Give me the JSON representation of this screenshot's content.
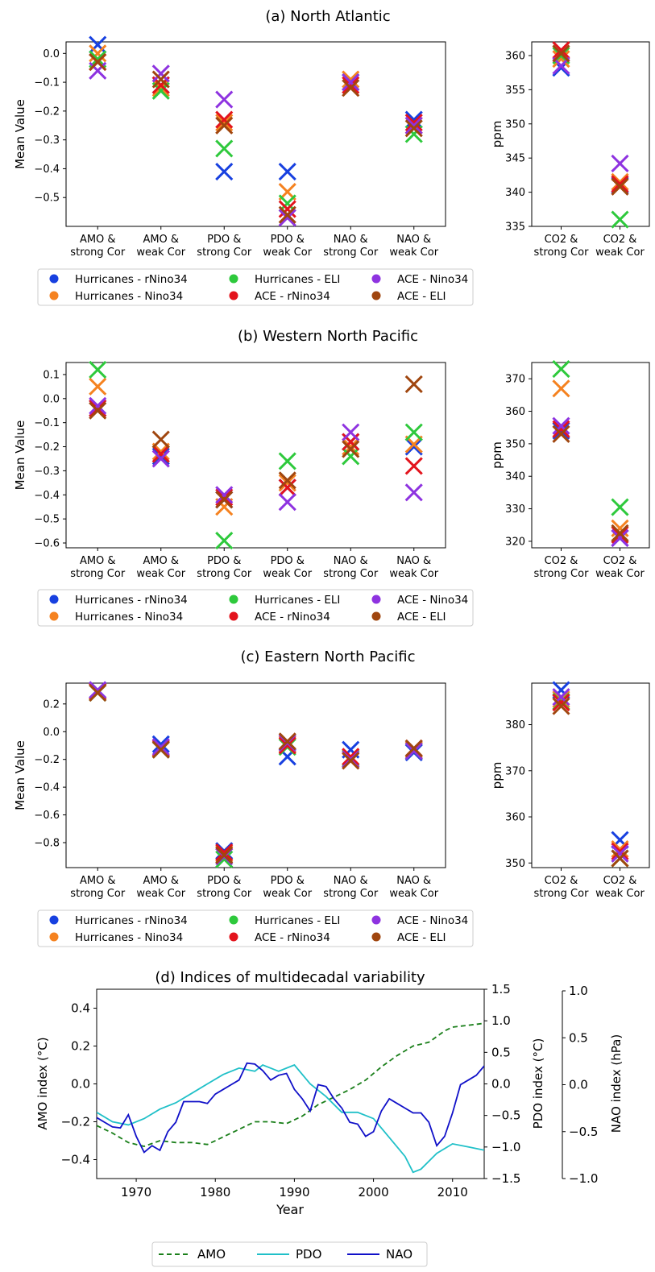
{
  "legend_top": {
    "items": [
      {
        "label": "Hurricanes - rNino34",
        "color": "#1740e0"
      },
      {
        "label": "Hurricanes - Nino34",
        "color": "#f58220"
      },
      {
        "label": "Hurricanes - ELI",
        "color": "#2ec93c"
      },
      {
        "label": "ACE - rNino34",
        "color": "#e3141d"
      },
      {
        "label": "ACE - Nino34",
        "color": "#8e33e0"
      },
      {
        "label": "ACE - ELI",
        "color": "#a0460f"
      }
    ]
  },
  "chart_data": [
    {
      "type": "scatter",
      "panel": "a",
      "title": "(a) North Atlantic",
      "ylabel": "Mean Value",
      "ylim": [
        -0.6,
        0.04
      ],
      "yticks": [
        0.0,
        -0.1,
        -0.2,
        -0.3,
        -0.4,
        -0.5
      ],
      "ytick_labels": [
        "0.0",
        "−0.1",
        "−0.2",
        "−0.3",
        "−0.4",
        "−0.5"
      ],
      "categories": [
        "AMO &|strong Cor",
        "AMO &|weak Cor",
        "PDO &|strong Cor",
        "PDO &|weak Cor",
        "NAO &|strong Cor",
        "NAO &|weak Cor"
      ],
      "series": [
        {
          "name": "Hurricanes - rNino34",
          "values": [
            0.03,
            -0.11,
            -0.41,
            -0.41,
            -0.1,
            -0.23
          ]
        },
        {
          "name": "Hurricanes - Nino34",
          "values": [
            0.0,
            -0.12,
            -0.24,
            -0.48,
            -0.09,
            -0.25
          ]
        },
        {
          "name": "Hurricanes - ELI",
          "values": [
            -0.02,
            -0.13,
            -0.33,
            -0.52,
            -0.1,
            -0.28
          ]
        },
        {
          "name": "ACE - rNino34",
          "values": [
            -0.03,
            -0.11,
            -0.23,
            -0.54,
            -0.11,
            -0.24
          ]
        },
        {
          "name": "ACE - Nino34",
          "values": [
            -0.06,
            -0.07,
            -0.16,
            -0.57,
            -0.1,
            -0.25
          ]
        },
        {
          "name": "ACE - ELI",
          "values": [
            -0.03,
            -0.09,
            -0.25,
            -0.56,
            -0.12,
            -0.26
          ]
        }
      ],
      "side": {
        "ylabel": "ppm",
        "ylim": [
          335,
          362
        ],
        "yticks": [
          360,
          355,
          350,
          345,
          340,
          335
        ],
        "categories": [
          "CO2 &|strong Cor",
          "CO2 &|weak Cor"
        ],
        "series": [
          {
            "name": "Hurricanes - rNino34",
            "values": [
              358.2,
              341.0
            ]
          },
          {
            "name": "Hurricanes - Nino34",
            "values": [
              359.5,
              341.5
            ]
          },
          {
            "name": "Hurricanes - ELI",
            "values": [
              360.0,
              336.0
            ]
          },
          {
            "name": "ACE - rNino34",
            "values": [
              360.8,
              341.2
            ]
          },
          {
            "name": "ACE - Nino34",
            "values": [
              358.5,
              344.2
            ]
          },
          {
            "name": "ACE - ELI",
            "values": [
              360.3,
              340.8
            ]
          }
        ]
      }
    },
    {
      "type": "scatter",
      "panel": "b",
      "title": "(b) Western North Pacific",
      "ylabel": "Mean Value",
      "ylim": [
        -0.62,
        0.15
      ],
      "yticks": [
        0.1,
        0.0,
        -0.1,
        -0.2,
        -0.3,
        -0.4,
        -0.5,
        -0.6
      ],
      "ytick_labels": [
        "0.1",
        "0.0",
        "−0.1",
        "−0.2",
        "−0.3",
        "−0.4",
        "−0.5",
        "−0.6"
      ],
      "categories": [
        "AMO &|strong Cor",
        "AMO &|weak Cor",
        "PDO &|strong Cor",
        "PDO &|weak Cor",
        "NAO &|strong Cor",
        "NAO &|weak Cor"
      ],
      "series": [
        {
          "name": "Hurricanes - rNino34",
          "values": [
            -0.04,
            -0.24,
            -0.42,
            -0.37,
            -0.18,
            -0.2
          ]
        },
        {
          "name": "Hurricanes - Nino34",
          "values": [
            0.05,
            -0.22,
            -0.45,
            -0.35,
            -0.2,
            -0.19
          ]
        },
        {
          "name": "Hurricanes - ELI",
          "values": [
            0.12,
            -0.23,
            -0.59,
            -0.26,
            -0.24,
            -0.14
          ]
        },
        {
          "name": "ACE - rNino34",
          "values": [
            -0.04,
            -0.23,
            -0.41,
            -0.37,
            -0.18,
            -0.28
          ]
        },
        {
          "name": "ACE - Nino34",
          "values": [
            -0.03,
            -0.25,
            -0.4,
            -0.43,
            -0.14,
            -0.39
          ]
        },
        {
          "name": "ACE - ELI",
          "values": [
            -0.05,
            -0.17,
            -0.42,
            -0.34,
            -0.21,
            0.06
          ]
        }
      ],
      "side": {
        "ylabel": "ppm",
        "ylim": [
          318,
          375
        ],
        "yticks": [
          370,
          360,
          350,
          340,
          330,
          320
        ],
        "categories": [
          "CO2 &|strong Cor",
          "CO2 &|weak Cor"
        ],
        "series": [
          {
            "name": "Hurricanes - rNino34",
            "values": [
              354.0,
              321.0
            ]
          },
          {
            "name": "Hurricanes - Nino34",
            "values": [
              367.0,
              324.0
            ]
          },
          {
            "name": "Hurricanes - ELI",
            "values": [
              373.0,
              330.5
            ]
          },
          {
            "name": "ACE - rNino34",
            "values": [
              354.5,
              322.0
            ]
          },
          {
            "name": "ACE - Nino34",
            "values": [
              355.5,
              321.0
            ]
          },
          {
            "name": "ACE - ELI",
            "values": [
              353.0,
              322.5
            ]
          }
        ]
      }
    },
    {
      "type": "scatter",
      "panel": "c",
      "title": "(c) Eastern North Pacific",
      "ylabel": "Mean Value",
      "ylim": [
        -0.98,
        0.35
      ],
      "yticks": [
        0.2,
        0.0,
        -0.2,
        -0.4,
        -0.6,
        -0.8
      ],
      "ytick_labels": [
        "0.2",
        "0.0",
        "−0.2",
        "−0.4",
        "−0.6",
        "−0.8"
      ],
      "categories": [
        "AMO &|strong Cor",
        "AMO &|weak Cor",
        "PDO &|strong Cor",
        "PDO &|weak Cor",
        "NAO &|strong Cor",
        "NAO &|weak Cor"
      ],
      "series": [
        {
          "name": "Hurricanes - rNino34",
          "values": [
            0.3,
            -0.09,
            -0.86,
            -0.18,
            -0.13,
            -0.15
          ]
        },
        {
          "name": "Hurricanes - Nino34",
          "values": [
            0.29,
            -0.12,
            -0.88,
            -0.09,
            -0.2,
            -0.13
          ]
        },
        {
          "name": "Hurricanes - ELI",
          "values": [
            0.28,
            -0.13,
            -0.92,
            -0.11,
            -0.19,
            -0.14
          ]
        },
        {
          "name": "ACE - rNino34",
          "values": [
            0.29,
            -0.12,
            -0.87,
            -0.1,
            -0.18,
            -0.12
          ]
        },
        {
          "name": "ACE - Nino34",
          "values": [
            0.3,
            -0.11,
            -0.9,
            -0.08,
            -0.2,
            -0.14
          ]
        },
        {
          "name": "ACE - ELI",
          "values": [
            0.28,
            -0.13,
            -0.89,
            -0.07,
            -0.21,
            -0.12
          ]
        }
      ],
      "side": {
        "ylabel": "ppm",
        "ylim": [
          349,
          389
        ],
        "yticks": [
          380,
          370,
          360,
          350
        ],
        "categories": [
          "CO2 &|strong Cor",
          "CO2 &|weak Cor"
        ],
        "series": [
          {
            "name": "Hurricanes - rNino34",
            "values": [
              387.5,
              355.0
            ]
          },
          {
            "name": "Hurricanes - Nino34",
            "values": [
              385.5,
              353.0
            ]
          },
          {
            "name": "Hurricanes - ELI",
            "values": [
              385.0,
              351.0
            ]
          },
          {
            "name": "ACE - rNino34",
            "values": [
              384.8,
              352.5
            ]
          },
          {
            "name": "ACE - Nino34",
            "values": [
              386.0,
              352.0
            ]
          },
          {
            "name": "ACE - ELI",
            "values": [
              384.0,
              351.0
            ]
          }
        ]
      }
    },
    {
      "type": "line",
      "panel": "d",
      "title": "(d) Indices of multidecadal variability",
      "xlabel": "Year",
      "xlim": [
        1965,
        2014
      ],
      "xticks": [
        1970,
        1980,
        1990,
        2000,
        2010
      ],
      "axes": {
        "AMO": {
          "label": "AMO index (°C)",
          "ylim": [
            -0.5,
            0.5
          ],
          "ticks": [
            0.4,
            0.2,
            0.0,
            -0.2,
            -0.4
          ],
          "tick_labels": [
            "0.4",
            "0.2",
            "0.0",
            "−0.2",
            "−0.4"
          ]
        },
        "PDO": {
          "label": "PDO index (°C)",
          "ylim": [
            -1.5,
            1.5
          ],
          "ticks": [
            1.5,
            1.0,
            0.5,
            0.0,
            -0.5,
            -1.0,
            -1.5
          ],
          "tick_labels": [
            "1.5",
            "1.0",
            "0.5",
            "0.0",
            "−0.5",
            "−1.0",
            "−1.5"
          ]
        },
        "NAO": {
          "label": "NAO index (hPa)",
          "ylim": [
            -1.0,
            1.0
          ],
          "ticks": [
            1.0,
            0.5,
            0.0,
            -0.5,
            -1.0
          ],
          "tick_labels": [
            "1.0",
            "0.5",
            "0.0",
            "−0.5",
            "−1.0"
          ]
        }
      },
      "series": [
        {
          "name": "AMO",
          "axis": "AMO",
          "color": "#1a7f1a",
          "dash": "dashed",
          "x": [
            1965,
            1967,
            1969,
            1971,
            1973,
            1975,
            1977,
            1979,
            1981,
            1983,
            1985,
            1987,
            1989,
            1991,
            1993,
            1995,
            1997,
            1999,
            2001,
            2003,
            2005,
            2007,
            2009,
            2010,
            2012,
            2014
          ],
          "y": [
            -0.22,
            -0.26,
            -0.31,
            -0.33,
            -0.3,
            -0.31,
            -0.31,
            -0.32,
            -0.28,
            -0.24,
            -0.2,
            -0.2,
            -0.21,
            -0.17,
            -0.11,
            -0.07,
            -0.03,
            0.02,
            0.09,
            0.15,
            0.2,
            0.22,
            0.28,
            0.3,
            0.31,
            0.32
          ]
        },
        {
          "name": "PDO",
          "axis": "PDO",
          "color": "#20c0c8",
          "dash": "solid",
          "x": [
            1965,
            1967,
            1969,
            1971,
            1973,
            1975,
            1977,
            1979,
            1981,
            1983,
            1985,
            1986,
            1988,
            1990,
            1992,
            1994,
            1996,
            1998,
            2000,
            2002,
            2004,
            2005,
            2006,
            2008,
            2010,
            2012,
            2014
          ],
          "y": [
            -0.45,
            -0.6,
            -0.65,
            -0.55,
            -0.4,
            -0.3,
            -0.15,
            0.0,
            0.15,
            0.25,
            0.2,
            0.3,
            0.2,
            0.3,
            0.0,
            -0.2,
            -0.45,
            -0.45,
            -0.55,
            -0.85,
            -1.15,
            -1.4,
            -1.35,
            -1.1,
            -0.95,
            -1.0,
            -1.05
          ]
        },
        {
          "name": "NAO",
          "axis": "NAO",
          "color": "#1010c8",
          "dash": "solid",
          "x": [
            1965,
            1966,
            1967,
            1968,
            1969,
            1970,
            1971,
            1972,
            1973,
            1974,
            1975,
            1976,
            1977,
            1978,
            1979,
            1980,
            1981,
            1982,
            1983,
            1984,
            1985,
            1986,
            1987,
            1988,
            1989,
            1990,
            1991,
            1992,
            1993,
            1994,
            1995,
            1996,
            1997,
            1998,
            1999,
            2000,
            2001,
            2002,
            2003,
            2004,
            2005,
            2006,
            2007,
            2008,
            2009,
            2010,
            2011,
            2012,
            2013,
            2014
          ],
          "y": [
            -0.35,
            -0.4,
            -0.45,
            -0.46,
            -0.32,
            -0.55,
            -0.72,
            -0.65,
            -0.7,
            -0.5,
            -0.4,
            -0.18,
            -0.18,
            -0.18,
            -0.2,
            -0.1,
            -0.05,
            0.0,
            0.05,
            0.23,
            0.22,
            0.15,
            0.05,
            0.1,
            0.12,
            -0.05,
            -0.15,
            -0.28,
            0.0,
            -0.02,
            -0.15,
            -0.25,
            -0.4,
            -0.42,
            -0.55,
            -0.5,
            -0.28,
            -0.15,
            -0.2,
            -0.25,
            -0.3,
            -0.3,
            -0.4,
            -0.65,
            -0.55,
            -0.3,
            0.0,
            0.05,
            0.1,
            0.2
          ]
        }
      ],
      "legend": [
        {
          "label": "AMO"
        },
        {
          "label": "PDO"
        },
        {
          "label": "NAO"
        }
      ]
    }
  ]
}
